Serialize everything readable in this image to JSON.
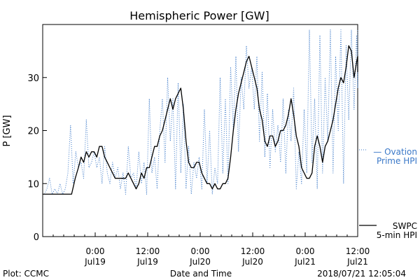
{
  "chart_data": {
    "type": "line",
    "title": "Hemispheric Power [GW]",
    "ylabel": "P [GW]",
    "xlabel": "Date and Time",
    "ylim": [
      0,
      40
    ],
    "y_ticks": [
      0,
      10,
      20,
      30
    ],
    "xlim_hours": [
      0,
      60
    ],
    "x_ticks": [
      {
        "hour": 10,
        "time": "0:00",
        "date": "Jul19"
      },
      {
        "hour": 20,
        "time": "12:00",
        "date": "Jul19"
      },
      {
        "hour": 30,
        "time": "0:00",
        "date": "Jul20"
      },
      {
        "hour": 40,
        "time": "12:00",
        "date": "Jul20"
      },
      {
        "hour": 50,
        "time": "0:00",
        "date": "Jul21"
      },
      {
        "hour": 60,
        "time": "12:00",
        "date": "Jul21"
      }
    ],
    "grid": false,
    "series": [
      {
        "name_lines": [
          "SWPC",
          "5-min HPI"
        ],
        "color": "#000000",
        "style": "solid",
        "points": [
          [
            0,
            8
          ],
          [
            5.5,
            8
          ],
          [
            6.2,
            11
          ],
          [
            6.8,
            13
          ],
          [
            7.3,
            15
          ],
          [
            7.8,
            14
          ],
          [
            8.3,
            16
          ],
          [
            8.8,
            15
          ],
          [
            9.3,
            16
          ],
          [
            9.8,
            16
          ],
          [
            10.3,
            15
          ],
          [
            10.8,
            17
          ],
          [
            11.3,
            17
          ],
          [
            11.8,
            15
          ],
          [
            12.3,
            14
          ],
          [
            12.8,
            13
          ],
          [
            13.3,
            12
          ],
          [
            13.8,
            11
          ],
          [
            14.3,
            11
          ],
          [
            14.8,
            11
          ],
          [
            15.3,
            11
          ],
          [
            15.8,
            11
          ],
          [
            16.3,
            12
          ],
          [
            16.8,
            11
          ],
          [
            17.3,
            10
          ],
          [
            17.8,
            9
          ],
          [
            18.3,
            10
          ],
          [
            18.8,
            12
          ],
          [
            19.3,
            11
          ],
          [
            19.8,
            13
          ],
          [
            20.3,
            13
          ],
          [
            20.8,
            15
          ],
          [
            21.3,
            17
          ],
          [
            21.8,
            17
          ],
          [
            22.3,
            19
          ],
          [
            22.8,
            20
          ],
          [
            23.3,
            22
          ],
          [
            23.8,
            24
          ],
          [
            24.3,
            26
          ],
          [
            24.8,
            24
          ],
          [
            25.3,
            26
          ],
          [
            25.8,
            27
          ],
          [
            26.3,
            28
          ],
          [
            26.8,
            24
          ],
          [
            27.3,
            18
          ],
          [
            27.8,
            14
          ],
          [
            28.3,
            13
          ],
          [
            28.8,
            13
          ],
          [
            29.3,
            14
          ],
          [
            29.8,
            14
          ],
          [
            30.3,
            12
          ],
          [
            30.8,
            11
          ],
          [
            31.3,
            10
          ],
          [
            31.8,
            10
          ],
          [
            32.3,
            9
          ],
          [
            32.8,
            10
          ],
          [
            33.3,
            9
          ],
          [
            33.8,
            9
          ],
          [
            34.3,
            10
          ],
          [
            34.8,
            10
          ],
          [
            35.3,
            11
          ],
          [
            35.8,
            15
          ],
          [
            36.3,
            20
          ],
          [
            36.8,
            24
          ],
          [
            37.3,
            27
          ],
          [
            37.8,
            29
          ],
          [
            38.3,
            31
          ],
          [
            38.8,
            33
          ],
          [
            39.3,
            34
          ],
          [
            39.8,
            32
          ],
          [
            40.3,
            30
          ],
          [
            40.8,
            28
          ],
          [
            41.3,
            24
          ],
          [
            41.8,
            22
          ],
          [
            42.3,
            18
          ],
          [
            42.8,
            17
          ],
          [
            43.3,
            19
          ],
          [
            43.8,
            19
          ],
          [
            44.3,
            17
          ],
          [
            44.8,
            18
          ],
          [
            45.3,
            20
          ],
          [
            45.8,
            20
          ],
          [
            46.3,
            21
          ],
          [
            46.8,
            23
          ],
          [
            47.3,
            26
          ],
          [
            47.8,
            23
          ],
          [
            48.3,
            19
          ],
          [
            48.8,
            17
          ],
          [
            49.3,
            13
          ],
          [
            49.8,
            12
          ],
          [
            50.3,
            11
          ],
          [
            50.8,
            11
          ],
          [
            51.3,
            12
          ],
          [
            51.8,
            17
          ],
          [
            52.3,
            19
          ],
          [
            52.8,
            17
          ],
          [
            53.3,
            14
          ],
          [
            53.8,
            17
          ],
          [
            54.3,
            18
          ],
          [
            54.8,
            20
          ],
          [
            55.3,
            22
          ],
          [
            55.8,
            25
          ],
          [
            56.3,
            28
          ],
          [
            56.8,
            30
          ],
          [
            57.3,
            29
          ],
          [
            57.8,
            32
          ],
          [
            58.3,
            36
          ],
          [
            58.8,
            35
          ],
          [
            59.3,
            30
          ],
          [
            59.8,
            33
          ],
          [
            60.3,
            34
          ],
          [
            60.8,
            31
          ]
        ]
      },
      {
        "name_lines": [
          "— Ovation",
          "Prime HPI"
        ],
        "color": "#3a78c8",
        "style": "dotted",
        "points": [
          [
            0.3,
            8
          ],
          [
            0.8,
            9
          ],
          [
            1.3,
            11
          ],
          [
            1.8,
            8
          ],
          [
            2.3,
            9
          ],
          [
            2.8,
            8
          ],
          [
            3.3,
            10
          ],
          [
            3.8,
            8
          ],
          [
            4.3,
            9
          ],
          [
            4.8,
            12
          ],
          [
            5.3,
            21
          ],
          [
            5.8,
            10
          ],
          [
            6.3,
            16
          ],
          [
            6.8,
            13
          ],
          [
            7.3,
            14
          ],
          [
            7.8,
            11
          ],
          [
            8.3,
            22
          ],
          [
            8.8,
            13
          ],
          [
            9.3,
            14
          ],
          [
            9.8,
            16
          ],
          [
            10.3,
            13
          ],
          [
            10.8,
            15
          ],
          [
            11.3,
            10
          ],
          [
            11.8,
            17
          ],
          [
            12.3,
            12
          ],
          [
            12.8,
            10
          ],
          [
            13.3,
            14
          ],
          [
            13.8,
            11
          ],
          [
            14.3,
            13
          ],
          [
            14.8,
            9
          ],
          [
            15.3,
            12
          ],
          [
            15.8,
            8
          ],
          [
            16.3,
            17
          ],
          [
            16.8,
            11
          ],
          [
            17.3,
            12
          ],
          [
            17.8,
            9
          ],
          [
            18.3,
            16
          ],
          [
            18.8,
            10
          ],
          [
            19.3,
            14
          ],
          [
            19.8,
            8
          ],
          [
            20.3,
            26
          ],
          [
            20.8,
            12
          ],
          [
            21.3,
            15
          ],
          [
            21.8,
            9
          ],
          [
            22.3,
            20
          ],
          [
            22.8,
            26
          ],
          [
            23.3,
            14
          ],
          [
            23.8,
            30
          ],
          [
            24.3,
            18
          ],
          [
            24.8,
            26
          ],
          [
            25.3,
            9
          ],
          [
            25.8,
            29
          ],
          [
            26.3,
            12
          ],
          [
            26.8,
            25
          ],
          [
            27.3,
            9
          ],
          [
            27.8,
            17
          ],
          [
            28.3,
            8
          ],
          [
            28.8,
            14
          ],
          [
            29.3,
            11
          ],
          [
            29.8,
            15
          ],
          [
            30.3,
            9
          ],
          [
            30.8,
            24
          ],
          [
            31.3,
            10
          ],
          [
            31.8,
            20
          ],
          [
            32.3,
            8
          ],
          [
            32.8,
            13
          ],
          [
            33.3,
            10
          ],
          [
            33.8,
            30
          ],
          [
            34.3,
            12
          ],
          [
            34.8,
            26
          ],
          [
            35.3,
            10
          ],
          [
            35.8,
            32
          ],
          [
            36.3,
            20
          ],
          [
            36.8,
            34
          ],
          [
            37.3,
            16
          ],
          [
            37.8,
            30
          ],
          [
            38.3,
            24
          ],
          [
            38.8,
            36
          ],
          [
            39.3,
            28
          ],
          [
            39.8,
            32
          ],
          [
            40.3,
            24
          ],
          [
            40.8,
            34
          ],
          [
            41.3,
            18
          ],
          [
            41.8,
            31
          ],
          [
            42.3,
            15
          ],
          [
            42.8,
            27
          ],
          [
            43.3,
            13
          ],
          [
            43.8,
            24
          ],
          [
            44.3,
            16
          ],
          [
            44.8,
            21
          ],
          [
            45.3,
            14
          ],
          [
            45.8,
            26
          ],
          [
            46.3,
            12
          ],
          [
            46.8,
            24
          ],
          [
            47.3,
            18
          ],
          [
            47.8,
            28
          ],
          [
            48.3,
            9
          ],
          [
            48.8,
            16
          ],
          [
            49.3,
            10
          ],
          [
            49.8,
            24
          ],
          [
            50.3,
            12
          ],
          [
            50.8,
            39
          ],
          [
            51.3,
            14
          ],
          [
            51.8,
            26
          ],
          [
            52.3,
            9
          ],
          [
            52.8,
            38
          ],
          [
            53.3,
            12
          ],
          [
            53.8,
            30
          ],
          [
            54.3,
            18
          ],
          [
            54.8,
            39
          ],
          [
            55.3,
            12
          ],
          [
            55.8,
            34
          ],
          [
            56.3,
            20
          ],
          [
            56.8,
            39
          ],
          [
            57.3,
            10
          ],
          [
            57.8,
            36
          ],
          [
            58.3,
            22
          ],
          [
            58.8,
            39
          ],
          [
            59.3,
            24
          ],
          [
            59.8,
            38
          ],
          [
            60.3,
            28
          ],
          [
            60.8,
            39
          ]
        ]
      }
    ]
  },
  "footer": {
    "plot_credit": "Plot: CCMC",
    "timestamp": "2018/07/21 12:05:04"
  }
}
